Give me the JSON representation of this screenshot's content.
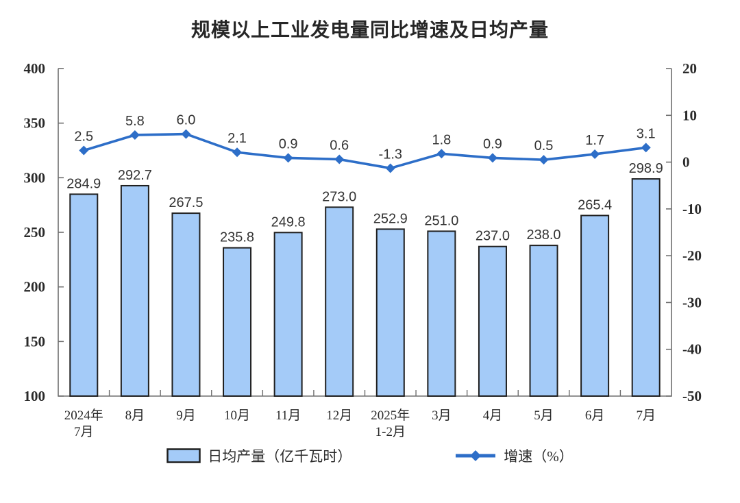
{
  "title": "规模以上工业发电量同比增速及日均产量",
  "legend": {
    "bar_label": "日均产量（亿千瓦时）",
    "line_label": "增速（%）"
  },
  "colors": {
    "bar_fill": "#A4CBF8",
    "bar_border": "#1f1f1f",
    "line": "#2D6EC8",
    "axis": "#6e6e6e",
    "tick_label": "#2a2a2a",
    "data_label": "#333333"
  },
  "chart_data": {
    "type": "bar+line combo",
    "title": "规模以上工业发电量同比增速及日均产量",
    "categories": [
      [
        "2024年",
        "7月"
      ],
      [
        "8月"
      ],
      [
        "9月"
      ],
      [
        "10月"
      ],
      [
        "11月"
      ],
      [
        "12月"
      ],
      [
        "2025年",
        "1-2月"
      ],
      [
        "3月"
      ],
      [
        "4月"
      ],
      [
        "5月"
      ],
      [
        "6月"
      ],
      [
        "7月"
      ]
    ],
    "series": [
      {
        "name": "日均产量（亿千瓦时）",
        "type": "bar",
        "axis": "left",
        "values": [
          284.9,
          292.7,
          267.5,
          235.8,
          249.8,
          273.0,
          252.9,
          251.0,
          237.0,
          238.0,
          265.4,
          298.9
        ]
      },
      {
        "name": "增速（%）",
        "type": "line",
        "axis": "right",
        "values": [
          2.5,
          5.8,
          6.0,
          2.1,
          0.9,
          0.6,
          -1.3,
          1.8,
          0.9,
          0.5,
          1.7,
          3.1
        ]
      }
    ],
    "left_axis": {
      "min": 100,
      "max": 400,
      "ticks": [
        400,
        350,
        300,
        250,
        200,
        150,
        100
      ]
    },
    "right_axis": {
      "min": -50,
      "max": 20,
      "ticks": [
        20,
        10,
        0,
        -10,
        -20,
        -30,
        -40,
        -50
      ]
    },
    "grid": false,
    "legend_position": "bottom"
  }
}
